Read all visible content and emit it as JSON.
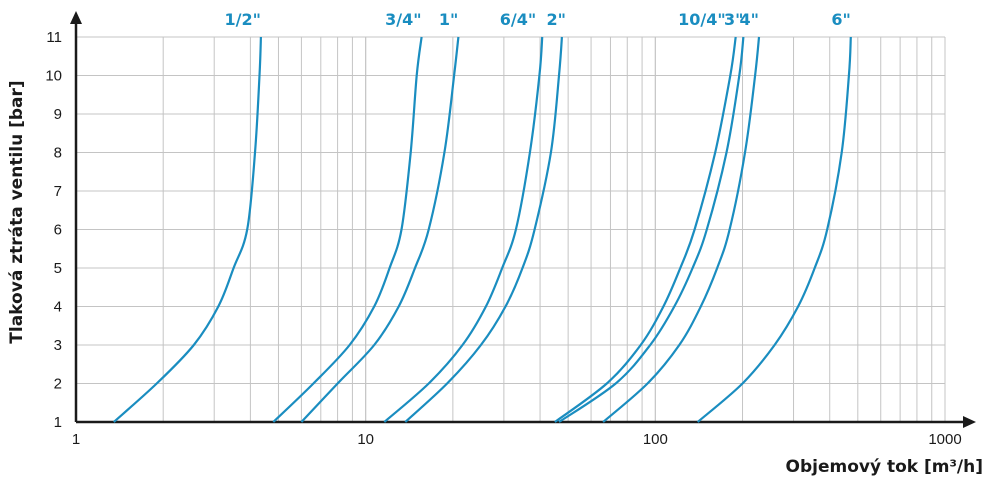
{
  "chart_data": {
    "type": "line",
    "ylabel": "Tlaková ztráta ventilu [bar]",
    "xlabel": "Objemový tok [m³/h]",
    "x_scale": "log",
    "xlim": [
      1,
      1000
    ],
    "ylim": [
      1,
      11
    ],
    "x_ticks": [
      "1",
      "10",
      "100",
      "1000"
    ],
    "y_ticks": [
      "1",
      "2",
      "3",
      "4",
      "5",
      "6",
      "7",
      "8",
      "9",
      "10",
      "11"
    ],
    "grid": true,
    "line_color": "#1a8dc0",
    "series": [
      {
        "name": "1/2\"",
        "x": [
          1.35,
          1.9,
          2.55,
          3.1,
          3.5,
          3.9,
          4.15,
          4.3,
          4.35
        ],
        "y": [
          1,
          2,
          3,
          4,
          5,
          6,
          8,
          10,
          11
        ]
      },
      {
        "name": "3/4\"",
        "x": [
          4.8,
          6.6,
          8.8,
          10.7,
          12.1,
          13.3,
          14.3,
          15.0,
          15.6
        ],
        "y": [
          1,
          2,
          3,
          4,
          5,
          6,
          8,
          10,
          11
        ]
      },
      {
        "name": "1\"",
        "x": [
          6.0,
          8.0,
          10.7,
          13.0,
          14.8,
          16.5,
          18.7,
          20.2,
          20.9
        ],
        "y": [
          1,
          2,
          3,
          4,
          5,
          6,
          8,
          10,
          11
        ]
      },
      {
        "name": "6/4\"",
        "x": [
          11.6,
          16.5,
          21.6,
          26.0,
          29.6,
          33.0,
          36.9,
          39.8,
          40.7
        ],
        "y": [
          1,
          2,
          3,
          4,
          5,
          6,
          8,
          10,
          11
        ]
      },
      {
        "name": "2\"",
        "x": [
          13.7,
          19.1,
          25.0,
          30.4,
          34.8,
          38.3,
          43.6,
          46.5,
          47.6
        ],
        "y": [
          1,
          2,
          3,
          4,
          5,
          6,
          8,
          10,
          11
        ]
      },
      {
        "name": "10/4\"",
        "x": [
          45.0,
          68.0,
          89.0,
          106.6,
          122.0,
          136.6,
          160.9,
          181.4,
          189.4
        ],
        "y": [
          1,
          2,
          3,
          4,
          5,
          6,
          8,
          10,
          11
        ]
      },
      {
        "name": "3\"",
        "x": [
          46.5,
          73.0,
          96.0,
          116.3,
          134.5,
          150.6,
          176.0,
          194.9,
          201.4
        ],
        "y": [
          1,
          2,
          3,
          4,
          5,
          6,
          8,
          10,
          11
        ]
      },
      {
        "name": "4\"",
        "x": [
          66.0,
          94.0,
          121.0,
          143.5,
          163.5,
          180.5,
          204.0,
          221.0,
          228.0
        ],
        "y": [
          1,
          2,
          3,
          4,
          5,
          6,
          8,
          10,
          11
        ]
      },
      {
        "name": "6\"",
        "x": [
          140.0,
          200.0,
          258.0,
          311.0,
          355.0,
          392.0,
          440.0,
          466.0,
          473.0
        ],
        "y": [
          1,
          2,
          3,
          4,
          5,
          6,
          8,
          10,
          11
        ]
      }
    ]
  }
}
